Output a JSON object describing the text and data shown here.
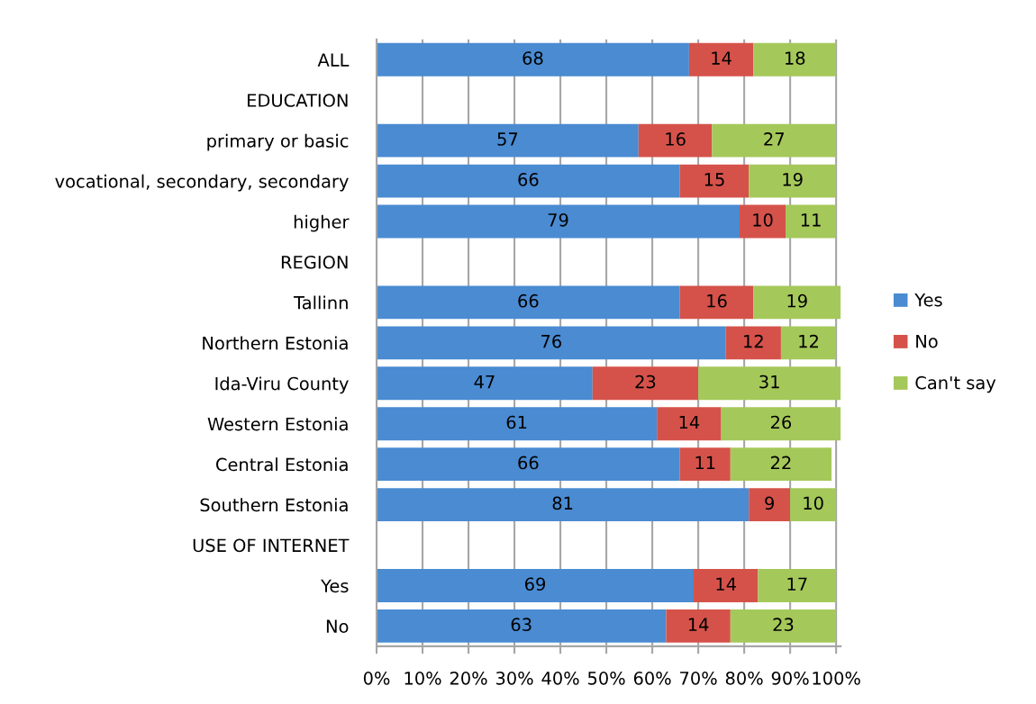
{
  "chart_data": {
    "type": "bar",
    "orientation": "horizontal",
    "stacked": true,
    "categories": [
      "ALL",
      "EDUCATION",
      "primary or basic",
      "vocational, secondary, secondary",
      "higher",
      "REGION",
      "Tallinn",
      "Northern Estonia",
      "Ida-Viru County",
      "Western Estonia",
      "Central Estonia",
      "Southern Estonia",
      "USE OF INTERNET",
      "Yes",
      "No"
    ],
    "series": [
      {
        "name": "Yes",
        "color": "#4a8bd2",
        "values": [
          68,
          null,
          57,
          66,
          79,
          null,
          66,
          76,
          47,
          61,
          66,
          81,
          null,
          69,
          63
        ]
      },
      {
        "name": "No",
        "color": "#d5524a",
        "values": [
          14,
          null,
          16,
          15,
          10,
          null,
          16,
          12,
          23,
          14,
          11,
          9,
          null,
          14,
          14
        ]
      },
      {
        "name": "Can't say",
        "color": "#a5c85a",
        "values": [
          18,
          null,
          27,
          19,
          11,
          null,
          19,
          12,
          31,
          26,
          22,
          10,
          null,
          17,
          23
        ]
      }
    ],
    "xlim": [
      0,
      101
    ],
    "xticks": [
      {
        "value": 0,
        "label": "0%"
      },
      {
        "value": 10,
        "label": "10%"
      },
      {
        "value": 20,
        "label": "20%"
      },
      {
        "value": 30,
        "label": "30%"
      },
      {
        "value": 40,
        "label": "40%"
      },
      {
        "value": 50,
        "label": "50%"
      },
      {
        "value": 60,
        "label": "60%"
      },
      {
        "value": 70,
        "label": "70%"
      },
      {
        "value": 80,
        "label": "80%"
      },
      {
        "value": 90,
        "label": "90%"
      },
      {
        "value": 100,
        "label": "100%"
      }
    ],
    "grid": "x",
    "legend": "right",
    "data_labels": true
  }
}
